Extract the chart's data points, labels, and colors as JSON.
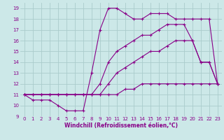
{
  "background_color": "#cce8e8",
  "grid_color": "#aacccc",
  "line_color": "#880088",
  "xlabel": "Windchill (Refroidissement éolien,°C)",
  "xlim": [
    -0.5,
    23.5
  ],
  "ylim": [
    9,
    19.5
  ],
  "yticks": [
    9,
    10,
    11,
    12,
    13,
    14,
    15,
    16,
    17,
    18,
    19
  ],
  "xticks": [
    0,
    1,
    2,
    3,
    4,
    5,
    6,
    7,
    8,
    9,
    10,
    11,
    12,
    13,
    14,
    15,
    16,
    17,
    18,
    19,
    20,
    21,
    22,
    23
  ],
  "series": [
    {
      "x": [
        0,
        1,
        2,
        3,
        4,
        5,
        6,
        7,
        8,
        9,
        10,
        11,
        12,
        13,
        14,
        15,
        16,
        17,
        18,
        19,
        20,
        21,
        22,
        23
      ],
      "y": [
        11,
        11,
        11,
        11,
        11,
        11,
        11,
        11,
        11,
        11,
        11,
        11,
        11.5,
        11.5,
        12,
        12,
        12,
        12,
        12,
        12,
        12,
        12,
        12,
        12
      ]
    },
    {
      "x": [
        0,
        1,
        2,
        3,
        4,
        5,
        6,
        7,
        8,
        9,
        10,
        11,
        12,
        13,
        14,
        15,
        16,
        17,
        18,
        19,
        20,
        21,
        22,
        23
      ],
      "y": [
        11,
        11,
        11,
        11,
        11,
        11,
        11,
        11,
        11,
        11,
        12,
        13,
        13.5,
        14,
        14.5,
        15,
        15,
        15.5,
        16,
        16,
        16,
        14,
        14,
        12
      ]
    },
    {
      "x": [
        0,
        1,
        2,
        3,
        4,
        5,
        6,
        7,
        8,
        9,
        10,
        11,
        12,
        13,
        14,
        15,
        16,
        17,
        18,
        19,
        20,
        21,
        22,
        23
      ],
      "y": [
        11,
        11,
        11,
        11,
        11,
        11,
        11,
        11,
        11,
        12,
        14,
        15,
        15.5,
        16,
        16.5,
        16.5,
        17,
        17.5,
        17.5,
        17.5,
        16,
        14,
        14,
        12
      ]
    },
    {
      "x": [
        0,
        1,
        2,
        3,
        4,
        5,
        6,
        7,
        8,
        9,
        10,
        11,
        12,
        13,
        14,
        15,
        16,
        17,
        18,
        19,
        20,
        21,
        22,
        23
      ],
      "y": [
        11,
        10.5,
        10.5,
        10.5,
        10,
        9.5,
        9.5,
        9.5,
        13,
        17,
        19,
        19,
        18.5,
        18,
        18,
        18.5,
        18.5,
        18.5,
        18,
        18,
        18,
        18,
        18,
        12
      ]
    }
  ]
}
